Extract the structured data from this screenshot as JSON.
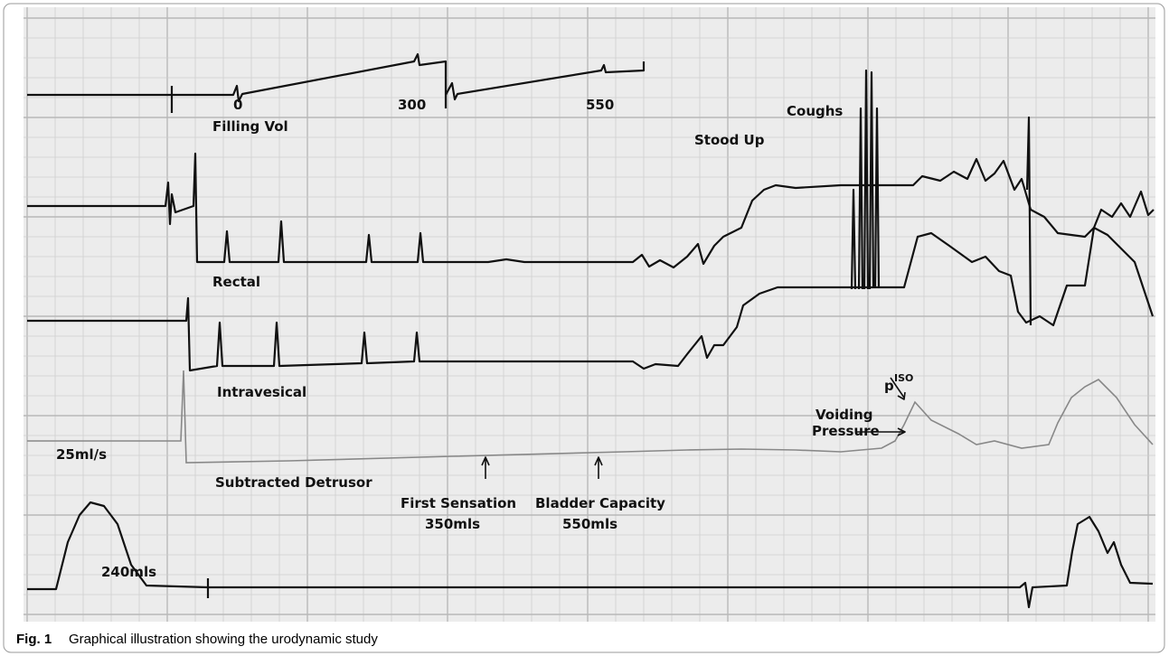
{
  "figure": {
    "annotations": [
      "0",
      "300",
      "550",
      "Filling Vol",
      "Coughs",
      "Stood Up",
      "Rectal",
      "Intravesical",
      "Subtracted Detrusor",
      "25ml/s",
      "240mls",
      "First Sensation",
      "350mls",
      "Bladder Capacity",
      "550mls",
      "Voiding",
      "Pressure",
      "p",
      "ISO"
    ]
  },
  "caption": {
    "label": "Fig. 1",
    "text": "Graphical illustration showing the urodynamic study"
  }
}
